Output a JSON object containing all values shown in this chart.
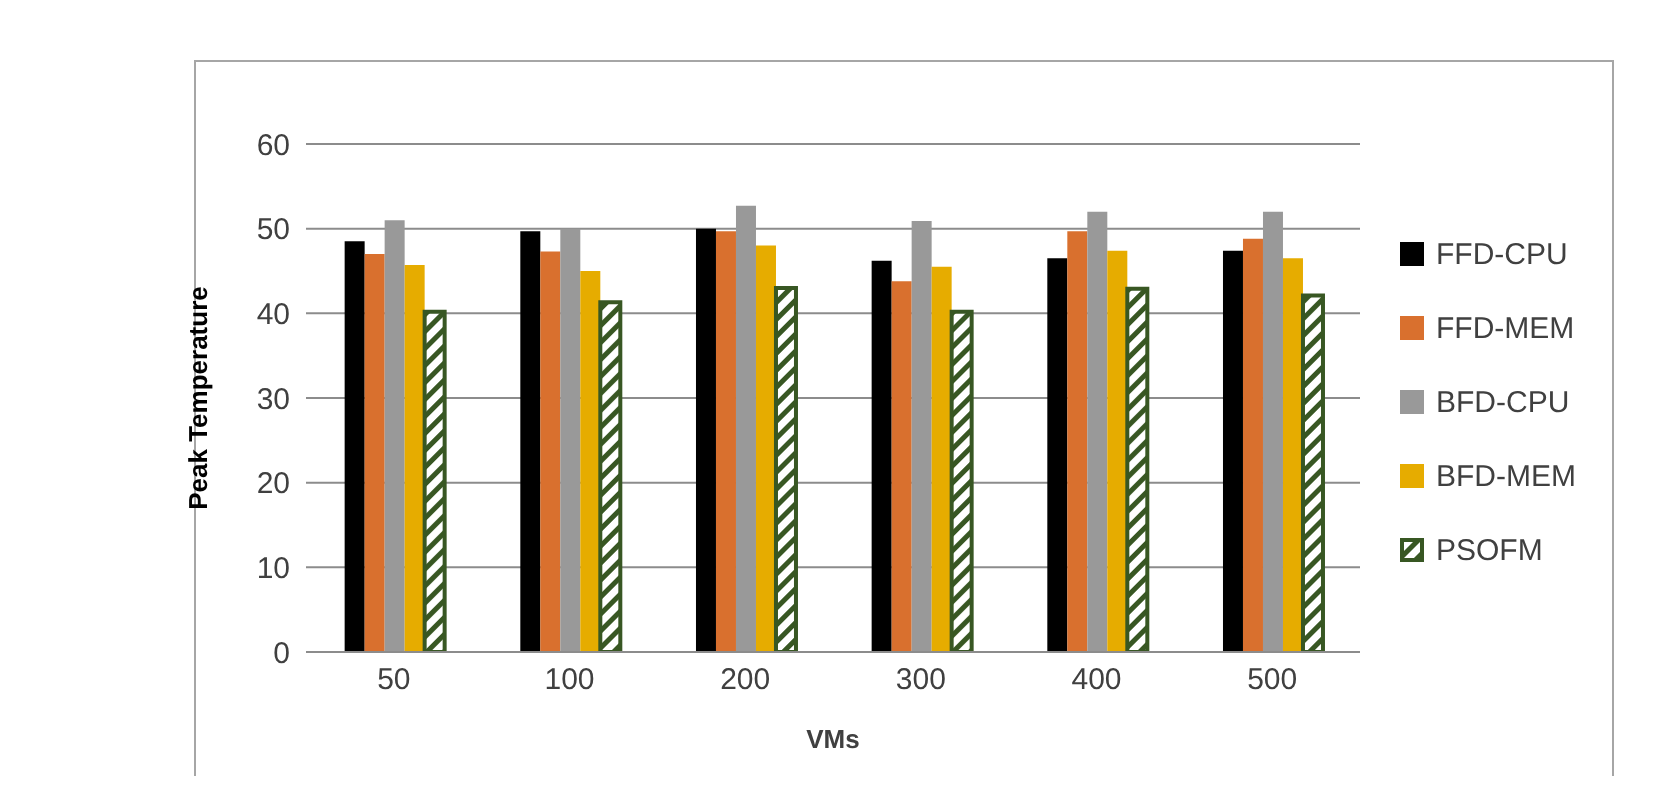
{
  "chart_data": {
    "type": "bar",
    "xlabel": "VMs",
    "ylabel": "Peak Temperature",
    "categories": [
      "50",
      "100",
      "200",
      "300",
      "400",
      "500"
    ],
    "series": [
      {
        "name": "FFD-CPU",
        "color": "#000000",
        "values": [
          48.5,
          49.7,
          50,
          46.2,
          46.5,
          47.4
        ]
      },
      {
        "name": "FFD-MEM",
        "color": "#d9702e",
        "values": [
          47,
          47.3,
          49.7,
          43.8,
          49.7,
          48.8
        ]
      },
      {
        "name": "BFD-CPU",
        "color": "#999999",
        "values": [
          51,
          50,
          52.7,
          50.9,
          52,
          52
        ]
      },
      {
        "name": "BFD-MEM",
        "color": "#e6ac00",
        "values": [
          45.7,
          45,
          48,
          45.5,
          47.4,
          46.5
        ]
      },
      {
        "name": "PSOFM",
        "color": "#385723",
        "values": [
          40.2,
          41.3,
          43,
          40.2,
          42.9,
          42.1
        ]
      }
    ],
    "ylim": [
      0,
      60
    ],
    "yticks": [
      0,
      10,
      20,
      30,
      40,
      50,
      60
    ],
    "grid": "y",
    "legend": "right"
  }
}
